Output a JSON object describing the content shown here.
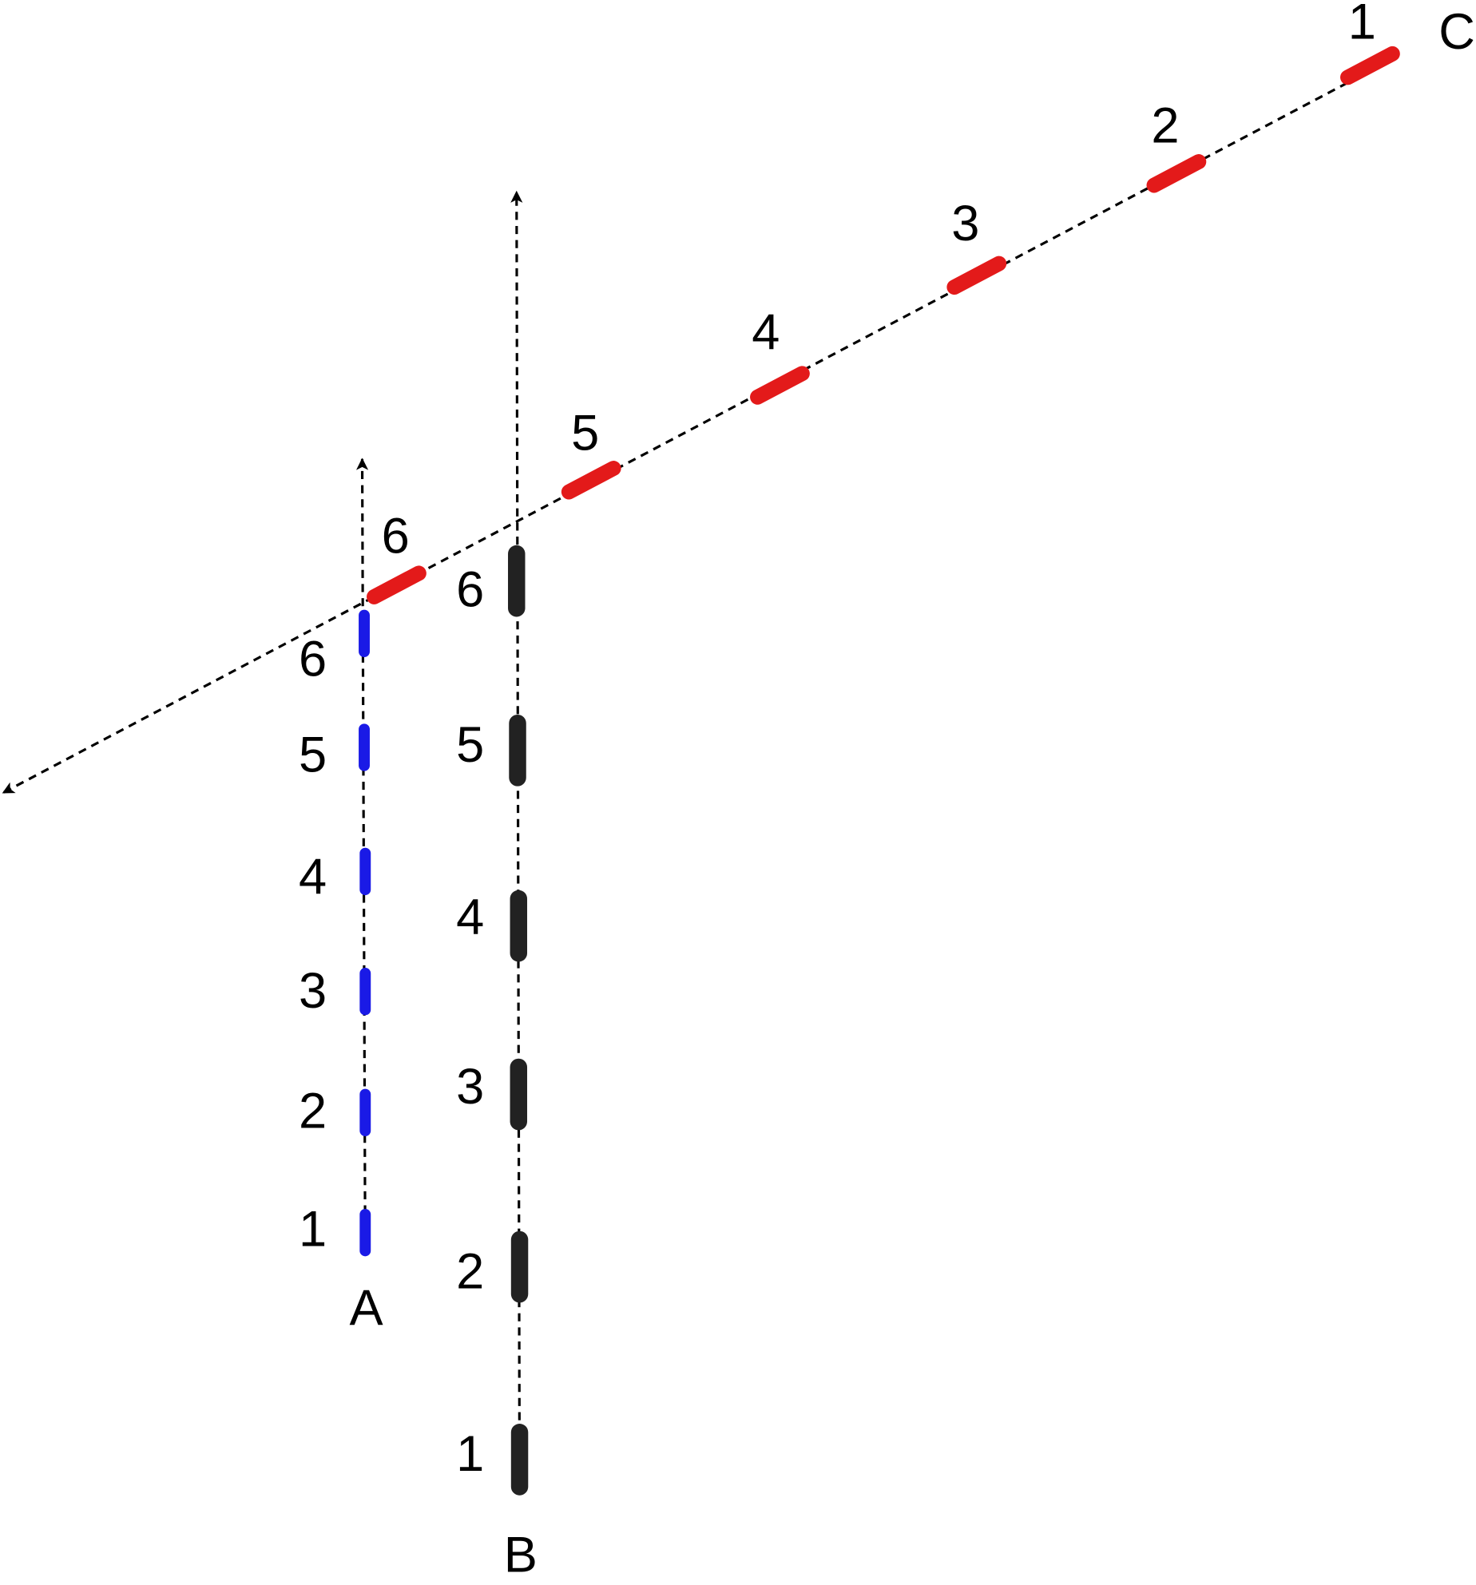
{
  "tracks": [
    {
      "name": "A",
      "positions": [
        "1",
        "2",
        "3",
        "4",
        "5",
        "6"
      ]
    },
    {
      "name": "B",
      "positions": [
        "1",
        "2",
        "3",
        "4",
        "5",
        "6"
      ]
    },
    {
      "name": "C",
      "positions": [
        "1",
        "2",
        "3",
        "4",
        "5",
        "6"
      ]
    }
  ]
}
